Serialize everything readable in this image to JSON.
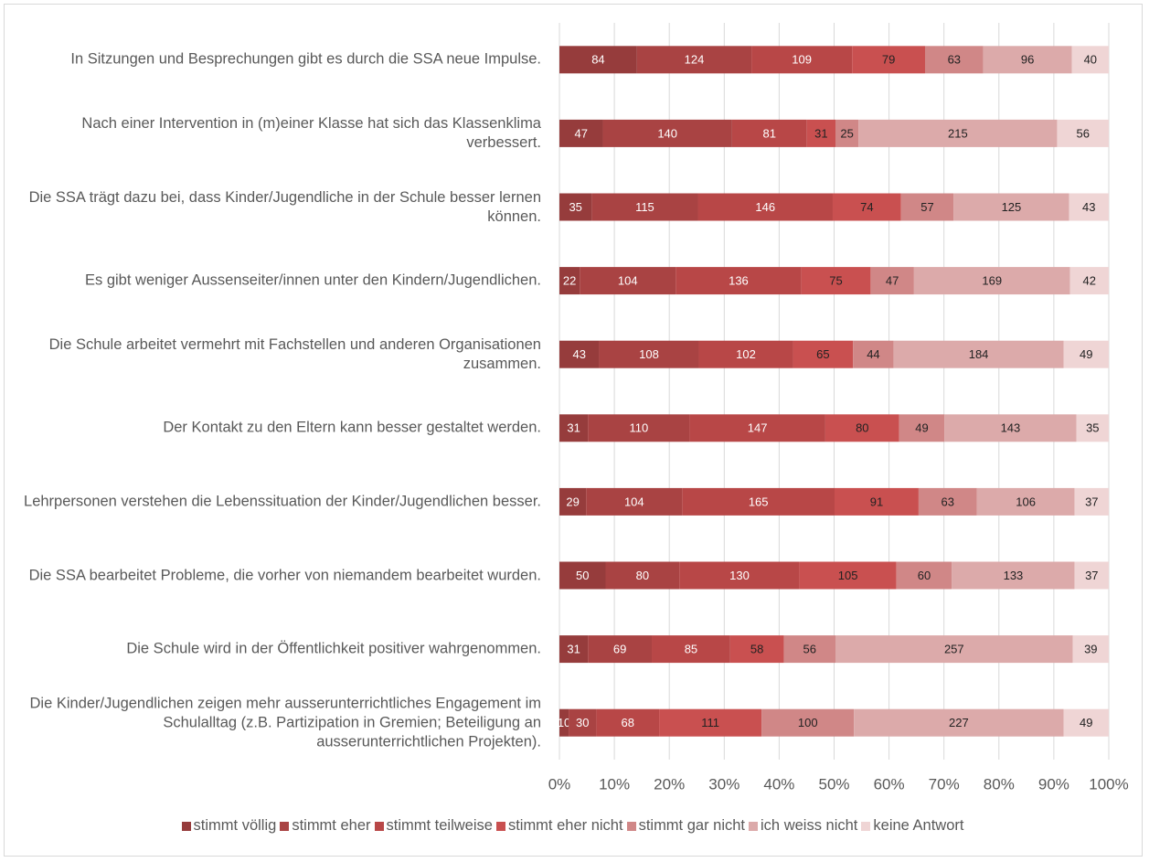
{
  "chart_data": {
    "type": "bar100h",
    "categories": [
      "In Sitzungen und Besprechungen gibt es durch die SSA neue Impulse.",
      "Nach einer Intervention in (m)einer Klasse hat sich das Klassenklima verbessert.",
      "Die SSA trägt dazu bei, dass Kinder/Jugendliche in der Schule besser lernen können.",
      "Es gibt weniger Aussenseiter/innen unter den Kindern/Jugendlichen.",
      "Die Schule arbeitet vermehrt mit Fachstellen und anderen Organisationen zusammen.",
      "Der Kontakt zu den Eltern kann besser gestaltet werden.",
      "Lehrpersonen verstehen die Lebenssituation der Kinder/Jugendlichen besser.",
      "Die SSA bearbeitet Probleme, die vorher von niemandem bearbeitet wurden.",
      "Die Schule wird in der Öffentlichkeit positiver wahrgenommen.",
      "Die Kinder/Jugendlichen zeigen mehr ausserunterrichtliches Engagement im Schulalltag (z.B. Partizipation in Gremien; Beteiligung an ausserunterrichtlichen Projekten)."
    ],
    "series": [
      {
        "name": "stimmt völlig",
        "color": "#963c3c",
        "values": [
          84,
          47,
          35,
          22,
          43,
          31,
          29,
          50,
          31,
          10
        ]
      },
      {
        "name": "stimmt eher",
        "color": "#a94343",
        "values": [
          124,
          140,
          115,
          104,
          108,
          110,
          104,
          80,
          69,
          30
        ]
      },
      {
        "name": "stimmt teilweise",
        "color": "#b84747",
        "values": [
          109,
          81,
          146,
          136,
          102,
          147,
          165,
          130,
          85,
          68
        ]
      },
      {
        "name": "stimmt eher nicht",
        "color": "#c95050",
        "values": [
          79,
          31,
          74,
          75,
          65,
          80,
          91,
          105,
          58,
          111
        ]
      },
      {
        "name": "stimmt gar nicht",
        "color": "#d08787",
        "values": [
          63,
          25,
          57,
          47,
          44,
          49,
          63,
          60,
          56,
          100
        ]
      },
      {
        "name": "ich weiss nicht",
        "color": "#dcaaaa",
        "values": [
          96,
          215,
          125,
          169,
          184,
          143,
          106,
          133,
          257,
          227
        ]
      },
      {
        "name": "keine Antwort",
        "color": "#efd5d5",
        "values": [
          40,
          56,
          43,
          42,
          49,
          35,
          37,
          37,
          39,
          49
        ]
      }
    ],
    "xlim": [
      0,
      100
    ],
    "xticks": [
      {
        "value": 0,
        "label": "0%"
      },
      {
        "value": 10,
        "label": "10%"
      },
      {
        "value": 20,
        "label": "20%"
      },
      {
        "value": 30,
        "label": "30%"
      },
      {
        "value": 40,
        "label": "40%"
      },
      {
        "value": 50,
        "label": "50%"
      },
      {
        "value": 60,
        "label": "60%"
      },
      {
        "value": 70,
        "label": "70%"
      },
      {
        "value": 80,
        "label": "80%"
      },
      {
        "value": 90,
        "label": "90%"
      },
      {
        "value": 100,
        "label": "100%"
      }
    ],
    "grid": true,
    "legend": "bottom"
  }
}
